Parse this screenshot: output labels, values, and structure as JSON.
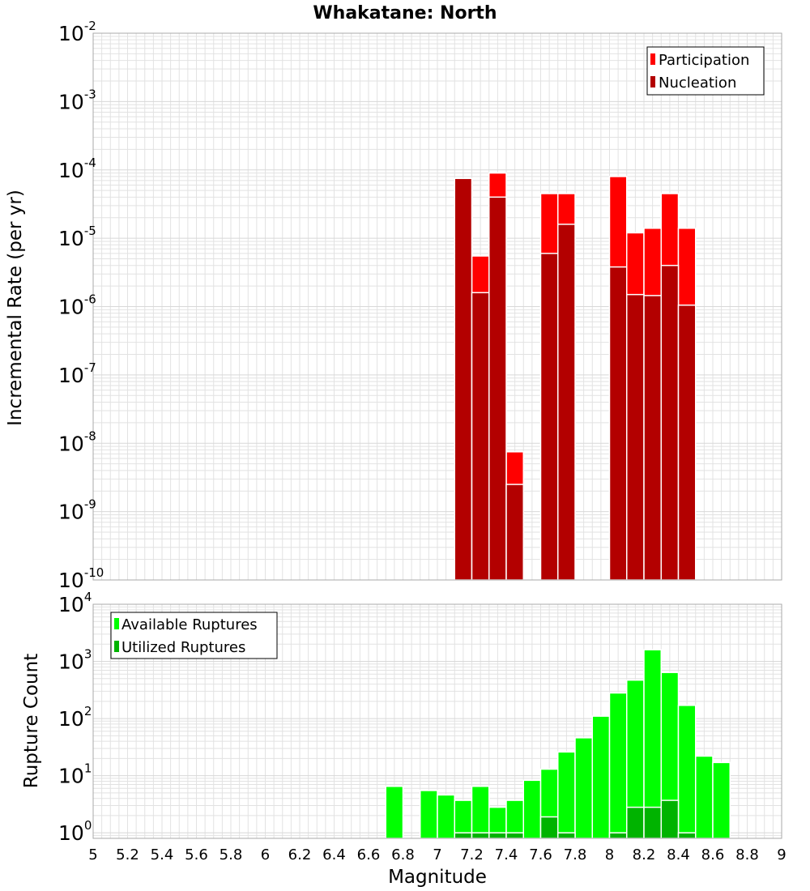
{
  "chart_data": [
    {
      "type": "bar",
      "title": "Whakatane: North",
      "xlabel": "Magnitude",
      "ylabel": "Incremental Rate (per yr)",
      "yscale": "log",
      "xlim": [
        5,
        9
      ],
      "ylim": [
        1e-10,
        0.01
      ],
      "bar_width": 0.1,
      "legend_position": "top-right",
      "series": [
        {
          "name": "Participation",
          "color": "#ff0000",
          "x": [
            7.15,
            7.25,
            7.35,
            7.45,
            7.65,
            7.75,
            8.05,
            8.15,
            8.25,
            8.35,
            8.45
          ],
          "values": [
            7.5e-05,
            5.5e-06,
            9e-05,
            7.5e-09,
            4.5e-05,
            4.5e-05,
            8e-05,
            1.2e-05,
            1.4e-05,
            4.5e-05,
            1.4e-05
          ]
        },
        {
          "name": "Nucleation",
          "color": "#b30000",
          "x": [
            7.15,
            7.25,
            7.35,
            7.45,
            7.65,
            7.75,
            8.05,
            8.15,
            8.25,
            8.35,
            8.45
          ],
          "values": [
            7.5e-05,
            1.6e-06,
            4e-05,
            2.5e-09,
            6e-06,
            1.6e-05,
            3.8e-06,
            1.5e-06,
            1.45e-06,
            4e-06,
            1.05e-06
          ]
        }
      ]
    },
    {
      "type": "bar",
      "xlabel": "Magnitude",
      "ylabel": "Rupture Count",
      "yscale": "log",
      "xlim": [
        5,
        9
      ],
      "ylim": [
        0.8,
        10000
      ],
      "bar_width": 0.1,
      "legend_position": "top-left",
      "series": [
        {
          "name": "Available Ruptures",
          "color": "#00ff00",
          "x": [
            6.75,
            6.95,
            7.05,
            7.15,
            7.25,
            7.35,
            7.45,
            7.55,
            7.65,
            7.75,
            7.85,
            7.95,
            8.05,
            8.15,
            8.25,
            8.35,
            8.45,
            8.55,
            8.65
          ],
          "values": [
            6.5,
            5.5,
            4.6,
            3.7,
            6.5,
            2.8,
            3.7,
            8.3,
            13,
            26,
            46,
            110,
            280,
            470,
            1600,
            640,
            170,
            22,
            17
          ]
        },
        {
          "name": "Utilized Ruptures",
          "color": "#00b300",
          "x": [
            7.15,
            7.25,
            7.35,
            7.45,
            7.65,
            7.75,
            8.05,
            8.15,
            8.25,
            8.35,
            8.45
          ],
          "values": [
            1,
            1,
            1,
            1,
            1.9,
            1,
            1,
            2.8,
            2.8,
            3.7,
            1
          ]
        }
      ],
      "xticks": [
        "5",
        "5.2",
        "5.4",
        "5.6",
        "5.8",
        "6",
        "6.2",
        "6.4",
        "6.6",
        "6.8",
        "7",
        "7.2",
        "7.4",
        "7.6",
        "7.8",
        "8",
        "8.2",
        "8.4",
        "8.6",
        "8.8",
        "9"
      ]
    }
  ],
  "top_yticks": [
    {
      "base": "10",
      "exp": "-2",
      "value": 0.01
    },
    {
      "base": "10",
      "exp": "-3",
      "value": 0.001
    },
    {
      "base": "10",
      "exp": "-4",
      "value": 0.0001
    },
    {
      "base": "10",
      "exp": "-5",
      "value": 1e-05
    },
    {
      "base": "10",
      "exp": "-6",
      "value": 1e-06
    },
    {
      "base": "10",
      "exp": "-7",
      "value": 1e-07
    },
    {
      "base": "10",
      "exp": "-8",
      "value": 1e-08
    },
    {
      "base": "10",
      "exp": "-9",
      "value": 1e-09
    },
    {
      "base": "10",
      "exp": "-10",
      "value": 1e-10
    }
  ],
  "bottom_yticks": [
    {
      "base": "10",
      "exp": "4",
      "value": 10000
    },
    {
      "base": "10",
      "exp": "3",
      "value": 1000
    },
    {
      "base": "10",
      "exp": "2",
      "value": 100
    },
    {
      "base": "10",
      "exp": "1",
      "value": 10
    },
    {
      "base": "10",
      "exp": "0",
      "value": 1
    }
  ],
  "colors": {
    "grid": "#e2e2e2",
    "frame": "#a9a9a9",
    "bar_outline": "#ffffff"
  }
}
